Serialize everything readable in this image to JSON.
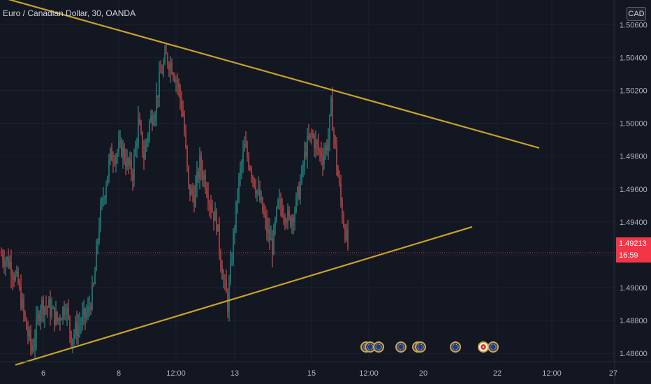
{
  "header": {
    "title": "Euro / Canadian Dollar, 30, OANDA",
    "currency": "CAD"
  },
  "last_price": {
    "value": "1.49213",
    "countdown": "16:59"
  },
  "colors": {
    "background": "#131722",
    "up": "#26a69a",
    "down": "#ef5350",
    "trendline": "#c9a227",
    "axis_text": "#b2b5be",
    "price_tag": "#f23645"
  },
  "chart_data": {
    "type": "candlestick",
    "series_name": "",
    "ylim": [
      1.4855,
      1.5075
    ],
    "y_ticks": [
      "1.48600",
      "1.48800",
      "1.49000",
      "1.49200",
      "1.49400",
      "1.49600",
      "1.49800",
      "1.50000",
      "1.50200",
      "1.50400",
      "1.50600"
    ],
    "y_tick_values": [
      1.486,
      1.488,
      1.49,
      1.492,
      1.494,
      1.496,
      1.498,
      1.5,
      1.502,
      1.504,
      1.506
    ],
    "x_ticks": [
      "6",
      "8",
      "12:00",
      "13",
      "15",
      "12:00",
      "20",
      "22",
      "12:00",
      "27"
    ],
    "x_tick_bars": [
      30,
      84,
      125,
      167,
      222,
      263,
      302,
      355,
      394,
      438
    ],
    "price_path": [
      [
        0,
        1.492
      ],
      [
        6,
        1.4915
      ],
      [
        12,
        1.4902
      ],
      [
        18,
        1.4875
      ],
      [
        22,
        1.4862
      ],
      [
        28,
        1.489
      ],
      [
        34,
        1.4888
      ],
      [
        40,
        1.488
      ],
      [
        46,
        1.489
      ],
      [
        50,
        1.487
      ],
      [
        56,
        1.4878
      ],
      [
        62,
        1.4885
      ],
      [
        66,
        1.49
      ],
      [
        70,
        1.494
      ],
      [
        74,
        1.496
      ],
      [
        78,
        1.498
      ],
      [
        82,
        1.4982
      ],
      [
        86,
        1.4985
      ],
      [
        90,
        1.4975
      ],
      [
        94,
        1.497
      ],
      [
        98,
        1.5
      ],
      [
        102,
        1.498
      ],
      [
        106,
        1.5
      ],
      [
        110,
        1.501
      ],
      [
        114,
        1.503
      ],
      [
        118,
        1.504
      ],
      [
        122,
        1.5035
      ],
      [
        126,
        1.5025
      ],
      [
        130,
        1.5005
      ],
      [
        134,
        1.496
      ],
      [
        138,
        1.4955
      ],
      [
        142,
        1.4975
      ],
      [
        146,
        1.4965
      ],
      [
        150,
        1.495
      ],
      [
        154,
        1.494
      ],
      [
        158,
        1.491
      ],
      [
        162,
        1.489
      ],
      [
        166,
        1.493
      ],
      [
        170,
        1.4965
      ],
      [
        174,
        1.4985
      ],
      [
        178,
        1.4975
      ],
      [
        182,
        1.4962
      ],
      [
        186,
        1.495
      ],
      [
        190,
        1.4935
      ],
      [
        194,
        1.4925
      ],
      [
        198,
        1.495
      ],
      [
        202,
        1.4948
      ],
      [
        206,
        1.494
      ],
      [
        210,
        1.4948
      ],
      [
        214,
        1.4963
      ],
      [
        218,
        1.4985
      ],
      [
        222,
        1.4993
      ],
      [
        226,
        1.4985
      ],
      [
        230,
        1.498
      ],
      [
        234,
        1.499
      ],
      [
        236,
        1.501
      ],
      [
        240,
        1.4975
      ],
      [
        244,
        1.4945
      ],
      [
        248,
        1.4925
      ]
    ],
    "trendlines": [
      {
        "name": "upper",
        "x1": -10,
        "y1": 1.5079,
        "x2": 385,
        "y2": 1.4985
      },
      {
        "name": "lower",
        "x1": 10,
        "y1": 1.4853,
        "x2": 337,
        "y2": 1.4937
      }
    ],
    "events": [
      {
        "bar": 261,
        "type": "eu"
      },
      {
        "bar": 264,
        "type": "eu"
      },
      {
        "bar": 270,
        "type": "eu"
      },
      {
        "bar": 286,
        "type": "eu"
      },
      {
        "bar": 298,
        "type": "eu"
      },
      {
        "bar": 300,
        "type": "eu"
      },
      {
        "bar": 325,
        "type": "eu"
      },
      {
        "bar": 345,
        "type": "ca"
      },
      {
        "bar": 352,
        "type": "eu"
      }
    ]
  }
}
